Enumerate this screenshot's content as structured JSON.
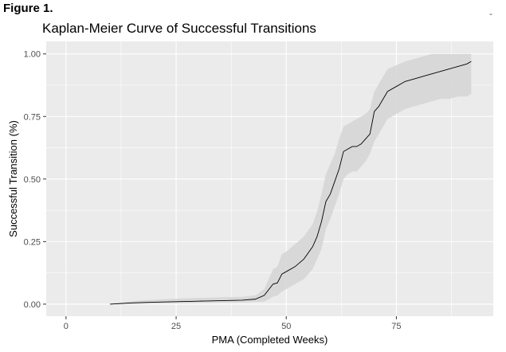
{
  "figure_label": "Figure 1.",
  "corner_mark": "-",
  "chart_data": {
    "type": "line",
    "title": "Kaplan-Meier Curve of Successful Transitions",
    "xlabel": "PMA (Completed Weeks)",
    "ylabel": "Successful Transition (%)",
    "xlim": [
      -4.5,
      97
    ],
    "ylim": [
      -0.048,
      1.05
    ],
    "x_ticks": [
      0,
      25,
      50,
      75
    ],
    "x_tick_labels": [
      "0",
      "25",
      "50",
      "75"
    ],
    "y_ticks": [
      0,
      0.25,
      0.5,
      0.75,
      1.0
    ],
    "y_tick_labels": [
      "0.00",
      "0.25",
      "0.50",
      "0.75",
      "1.00"
    ],
    "grid": true,
    "colors": {
      "panel": "#ebebeb",
      "grid": "#ffffff",
      "line": "#000000",
      "band": "#d6d6d6"
    },
    "series": [
      {
        "x": [
          10,
          15,
          20,
          25,
          30,
          35,
          40,
          43,
          45,
          47,
          48,
          49,
          50,
          52,
          54,
          56,
          57,
          58,
          59,
          60,
          61,
          62,
          63,
          64,
          65,
          66,
          67,
          68,
          69,
          70,
          71,
          72,
          73,
          75,
          77,
          79,
          81,
          83,
          85,
          87,
          89,
          91,
          92
        ],
        "y": [
          0.0,
          0.005,
          0.008,
          0.01,
          0.012,
          0.014,
          0.016,
          0.02,
          0.035,
          0.08,
          0.085,
          0.12,
          0.13,
          0.15,
          0.18,
          0.23,
          0.27,
          0.33,
          0.41,
          0.44,
          0.49,
          0.54,
          0.61,
          0.62,
          0.63,
          0.63,
          0.64,
          0.66,
          0.68,
          0.77,
          0.79,
          0.82,
          0.85,
          0.87,
          0.89,
          0.9,
          0.91,
          0.92,
          0.93,
          0.94,
          0.95,
          0.96,
          0.97
        ],
        "lower": [
          0.0,
          0.0,
          0.002,
          0.003,
          0.005,
          0.006,
          0.007,
          0.009,
          0.01,
          0.03,
          0.035,
          0.05,
          0.06,
          0.08,
          0.1,
          0.14,
          0.18,
          0.22,
          0.3,
          0.34,
          0.39,
          0.44,
          0.5,
          0.52,
          0.53,
          0.53,
          0.55,
          0.57,
          0.6,
          0.65,
          0.68,
          0.71,
          0.74,
          0.76,
          0.78,
          0.79,
          0.8,
          0.81,
          0.82,
          0.82,
          0.83,
          0.83,
          0.84
        ],
        "upper": [
          0.002,
          0.012,
          0.018,
          0.022,
          0.025,
          0.027,
          0.029,
          0.035,
          0.06,
          0.14,
          0.15,
          0.2,
          0.21,
          0.24,
          0.27,
          0.32,
          0.37,
          0.44,
          0.52,
          0.56,
          0.6,
          0.66,
          0.71,
          0.72,
          0.73,
          0.74,
          0.75,
          0.76,
          0.78,
          0.85,
          0.88,
          0.91,
          0.94,
          0.955,
          0.97,
          0.98,
          0.99,
          1.0,
          1.0,
          1.0,
          1.0,
          1.0,
          1.0
        ]
      }
    ]
  }
}
